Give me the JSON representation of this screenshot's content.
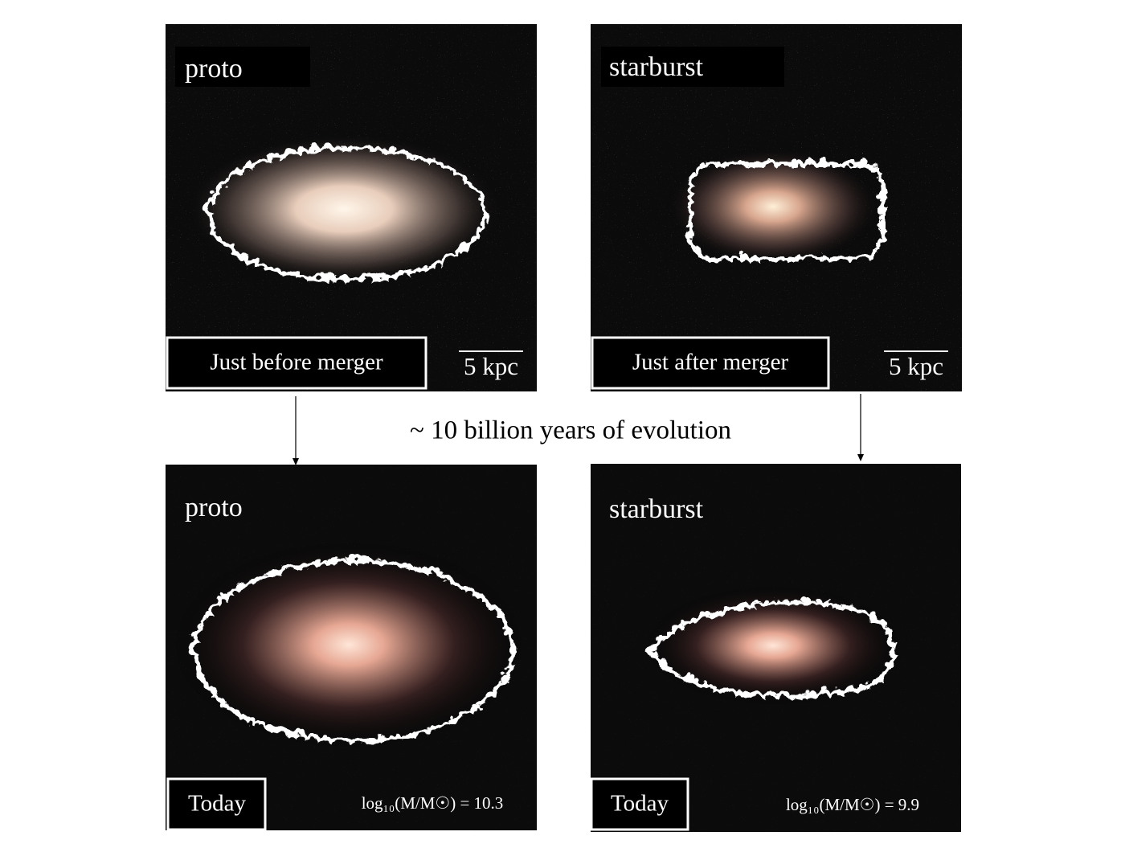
{
  "panels": [
    {
      "label": "proto",
      "caption": "Just before merger",
      "scale_bar": "5 kpc"
    },
    {
      "label": "starburst",
      "caption": "Just after merger",
      "scale_bar": "5 kpc"
    },
    {
      "label": "proto",
      "caption": "Today",
      "mass_label": "log₁₀(M/M☉) = 10.3"
    },
    {
      "label": "starburst",
      "caption": "Today",
      "mass_label": "log₁₀(M/M☉) = 9.9"
    }
  ],
  "annotation": "~ 10 billion years of evolution"
}
